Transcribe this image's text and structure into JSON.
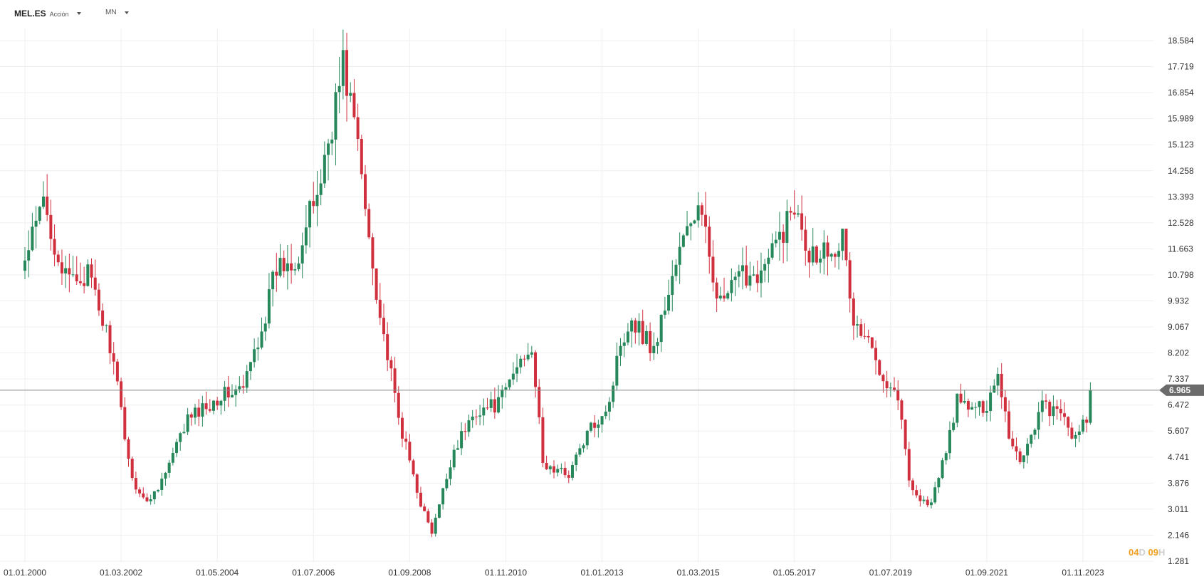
{
  "toolbar": {
    "symbol": "MEL.ES",
    "type": "Acción",
    "interval": "MN"
  },
  "timer": {
    "days": "04",
    "days_unit": "D",
    "hours": "09",
    "hours_unit": "H"
  },
  "colors": {
    "up": "#26875a",
    "down": "#d0303e",
    "current_line": "#8a8a8a",
    "current_badge": "#6b6b6b",
    "grid": "#efefef"
  },
  "chart_data": {
    "type": "candlestick",
    "title": "",
    "xlabel": "",
    "ylabel": "",
    "grid": true,
    "ylim": [
      1.281,
      19.0
    ],
    "y_ticks": [
      "18.584",
      "17.719",
      "16.854",
      "15.989",
      "15.123",
      "14.258",
      "13.393",
      "12.528",
      "11.663",
      "10.798",
      "9.932",
      "9.067",
      "8.202",
      "7.337",
      "6.472",
      "5.607",
      "4.741",
      "3.876",
      "3.011",
      "2.146",
      "1.281"
    ],
    "x_tick_labels": [
      "01.01.2000",
      "01.03.2002",
      "01.05.2004",
      "01.07.2006",
      "01.09.2008",
      "01.11.2010",
      "01.01.2013",
      "01.03.2015",
      "01.05.2017",
      "01.07.2019",
      "01.09.2021",
      "01.11.2023"
    ],
    "current_price": "6.965",
    "current_price_value": 6.965,
    "start": "2000-01",
    "anchors": [
      [
        "2000-01",
        11.2
      ],
      [
        "2000-06",
        13.2
      ],
      [
        "2000-12",
        10.6
      ],
      [
        "2001-06",
        10.8
      ],
      [
        "2001-12",
        8.5
      ],
      [
        "2002-06",
        4.0
      ],
      [
        "2002-10",
        3.2
      ],
      [
        "2003-03",
        4.2
      ],
      [
        "2003-09",
        6.0
      ],
      [
        "2004-06",
        6.8
      ],
      [
        "2004-12",
        7.0
      ],
      [
        "2005-06",
        9.5
      ],
      [
        "2005-09",
        11.0
      ],
      [
        "2006-03",
        11.5
      ],
      [
        "2006-09",
        14.0
      ],
      [
        "2007-03",
        17.8
      ],
      [
        "2007-06",
        16.0
      ],
      [
        "2007-09",
        13.0
      ],
      [
        "2008-01",
        9.5
      ],
      [
        "2008-06",
        6.0
      ],
      [
        "2008-12",
        3.2
      ],
      [
        "2009-03",
        2.2
      ],
      [
        "2009-09",
        5.0
      ],
      [
        "2010-03",
        6.3
      ],
      [
        "2010-09",
        6.5
      ],
      [
        "2011-03",
        8.0
      ],
      [
        "2011-06",
        8.5
      ],
      [
        "2011-09",
        4.5
      ],
      [
        "2011-12",
        4.3
      ],
      [
        "2012-04",
        4.2
      ],
      [
        "2012-09",
        5.5
      ],
      [
        "2013-03",
        6.6
      ],
      [
        "2013-06",
        8.6
      ],
      [
        "2013-09",
        9.4
      ],
      [
        "2014-03",
        8.3
      ],
      [
        "2014-09",
        11.2
      ],
      [
        "2015-01",
        12.6
      ],
      [
        "2015-03",
        13.0
      ],
      [
        "2015-06",
        11.5
      ],
      [
        "2015-09",
        9.8
      ],
      [
        "2016-03",
        10.8
      ],
      [
        "2016-09",
        11.0
      ],
      [
        "2017-03",
        12.6
      ],
      [
        "2017-06",
        13.2
      ],
      [
        "2017-09",
        11.5
      ],
      [
        "2018-03",
        11.8
      ],
      [
        "2018-06",
        12.0
      ],
      [
        "2018-09",
        9.2
      ],
      [
        "2019-01",
        8.5
      ],
      [
        "2019-06",
        7.3
      ],
      [
        "2019-09",
        6.8
      ],
      [
        "2019-12",
        4.0
      ],
      [
        "2020-03",
        3.3
      ],
      [
        "2020-06",
        3.2
      ],
      [
        "2020-09",
        4.5
      ],
      [
        "2021-01",
        6.6
      ],
      [
        "2021-06",
        6.3
      ],
      [
        "2021-09",
        6.5
      ],
      [
        "2021-12",
        7.6
      ],
      [
        "2022-03",
        5.5
      ],
      [
        "2022-06",
        4.6
      ],
      [
        "2022-09",
        5.5
      ],
      [
        "2022-12",
        6.5
      ],
      [
        "2023-06",
        6.0
      ],
      [
        "2023-09",
        5.3
      ],
      [
        "2023-12",
        6.0
      ],
      [
        "2024-01",
        6.965
      ]
    ]
  }
}
